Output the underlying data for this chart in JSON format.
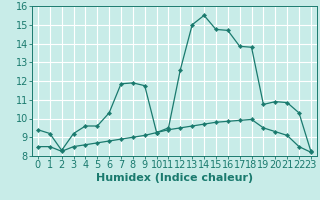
{
  "xlabel": "Humidex (Indice chaleur)",
  "background_color": "#c8ece8",
  "grid_color": "#ffffff",
  "line_color": "#1a7a6e",
  "xlim": [
    -0.5,
    23.5
  ],
  "ylim": [
    8,
    16
  ],
  "xticks": [
    0,
    1,
    2,
    3,
    4,
    5,
    6,
    7,
    8,
    9,
    10,
    11,
    12,
    13,
    14,
    15,
    16,
    17,
    18,
    19,
    20,
    21,
    22,
    23
  ],
  "yticks": [
    8,
    9,
    10,
    11,
    12,
    13,
    14,
    15,
    16
  ],
  "curve1_x": [
    0,
    1,
    2,
    3,
    4,
    5,
    6,
    7,
    8,
    9,
    10,
    11,
    12,
    13,
    14,
    15,
    16,
    17,
    18,
    19,
    20,
    21,
    22,
    23
  ],
  "curve1_y": [
    9.4,
    9.2,
    8.3,
    9.2,
    9.6,
    9.6,
    10.3,
    11.85,
    11.9,
    11.75,
    9.25,
    9.5,
    12.6,
    15.0,
    15.5,
    14.75,
    14.7,
    13.85,
    13.8,
    10.75,
    10.9,
    10.85,
    10.3,
    8.25
  ],
  "curve2_x": [
    0,
    1,
    2,
    3,
    4,
    5,
    6,
    7,
    8,
    9,
    10,
    11,
    12,
    13,
    14,
    15,
    16,
    17,
    18,
    19,
    20,
    21,
    22,
    23
  ],
  "curve2_y": [
    8.5,
    8.5,
    8.25,
    8.5,
    8.6,
    8.7,
    8.8,
    8.9,
    9.0,
    9.1,
    9.25,
    9.4,
    9.5,
    9.6,
    9.7,
    9.8,
    9.85,
    9.9,
    9.95,
    9.5,
    9.3,
    9.1,
    8.5,
    8.2
  ],
  "font_size_xlabel": 8,
  "font_size_ticks": 7
}
